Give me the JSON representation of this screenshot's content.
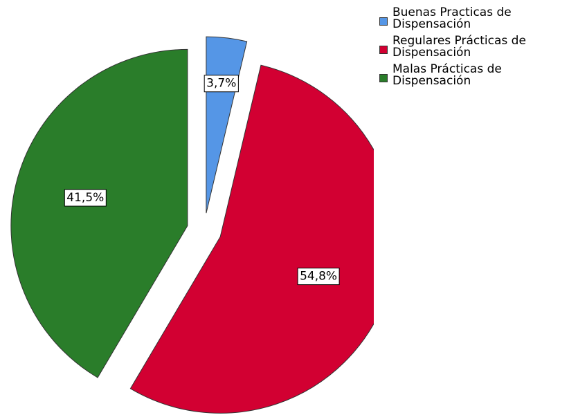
{
  "chart_data": {
    "type": "pie",
    "categories": [
      "Buenas Practicas de Dispensación",
      "Regulares Prácticas de Dispensación",
      "Malas Prácticas de Dispensación"
    ],
    "values": [
      3.7,
      54.8,
      41.5
    ],
    "value_labels": [
      "3,7%",
      "54,8%",
      "41,5%"
    ],
    "colors": [
      "#5596e6",
      "#d20032",
      "#2a7d2a"
    ],
    "legend": "top-right"
  }
}
